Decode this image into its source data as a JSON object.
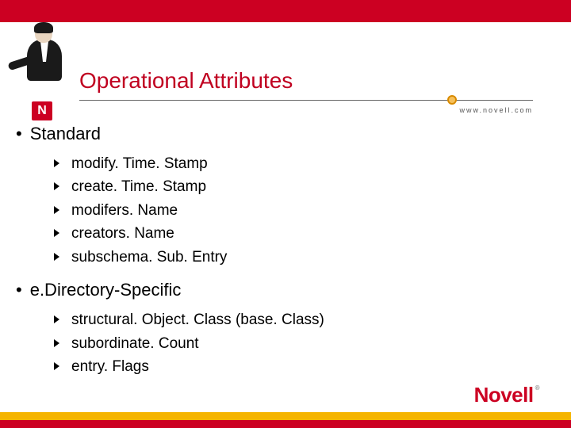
{
  "brand": {
    "top_bar_color": "#cc0022",
    "n_badge": "N",
    "url": "www.novell.com",
    "logo_text": "Novell",
    "logo_reg": "®"
  },
  "title": "Operational Attributes",
  "sections": [
    {
      "heading": "Standard",
      "items": [
        "modify. Time. Stamp",
        "create. Time. Stamp",
        "modifers. Name",
        "creators. Name",
        "subschema. Sub. Entry"
      ]
    },
    {
      "heading": "e.Directory-Specific",
      "items": [
        "structural. Object. Class (base. Class)",
        "subordinate. Count",
        "entry. Flags"
      ]
    }
  ]
}
